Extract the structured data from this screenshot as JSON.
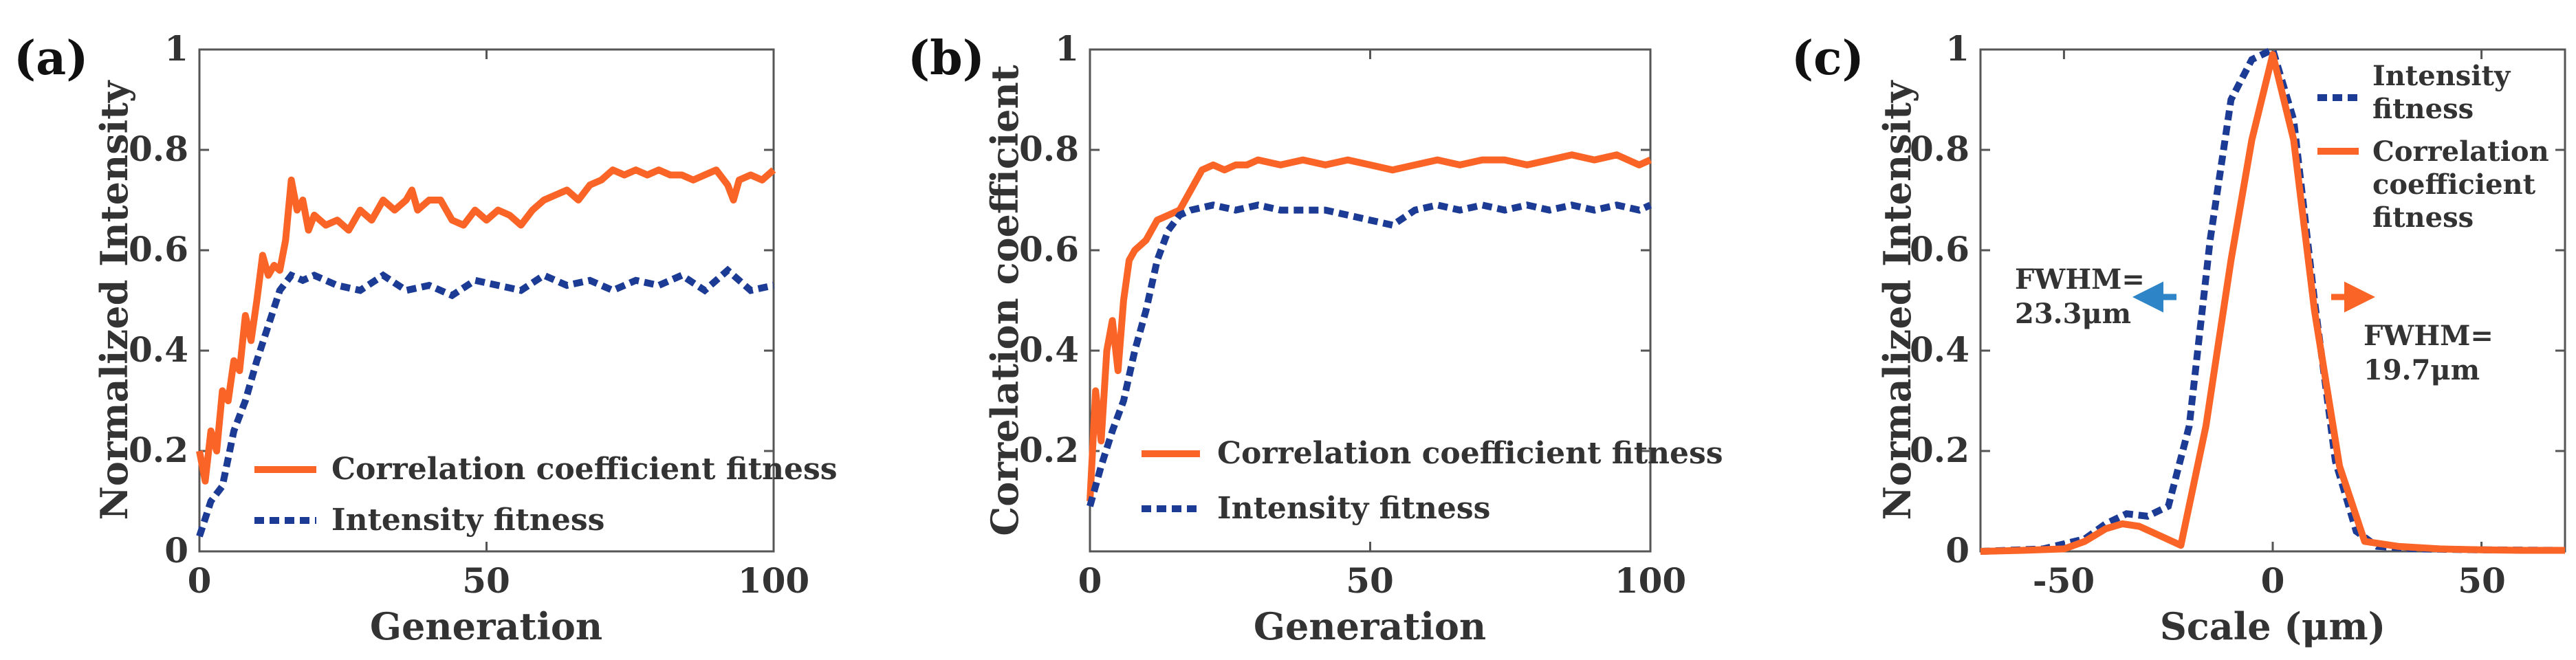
{
  "colors": {
    "orange": "#fa6426",
    "blue": "#1c3b94",
    "arrow_blue": "#2d85c8"
  },
  "chart_data": [
    {
      "type": "line",
      "panel_label": "(a)",
      "xlabel": "Generation",
      "ylabel": "Normalized Intensity",
      "xlim": [
        0,
        100
      ],
      "ylim": [
        0,
        1
      ],
      "xticks": [
        0,
        50,
        100
      ],
      "yticks": [
        0,
        0.2,
        0.4,
        0.6,
        0.8,
        1
      ],
      "ytick_labels": [
        "0",
        "0.2",
        "0.4",
        "0.6",
        "0.8",
        "1"
      ],
      "legend_position": "bottom-right",
      "series": [
        {
          "name": "Correlation coefficient fitness",
          "style": "solid",
          "x": [
            0,
            1,
            2,
            3,
            4,
            5,
            6,
            7,
            8,
            9,
            10,
            11,
            12,
            13,
            14,
            15,
            16,
            17,
            18,
            19,
            20,
            22,
            24,
            26,
            28,
            30,
            32,
            34,
            36,
            37,
            38,
            40,
            42,
            44,
            46,
            48,
            50,
            52,
            54,
            56,
            58,
            60,
            62,
            64,
            66,
            68,
            70,
            72,
            74,
            76,
            78,
            80,
            82,
            84,
            86,
            88,
            90,
            92,
            93,
            94,
            96,
            98,
            100
          ],
          "y": [
            0.2,
            0.14,
            0.24,
            0.2,
            0.32,
            0.3,
            0.38,
            0.36,
            0.47,
            0.42,
            0.5,
            0.59,
            0.55,
            0.57,
            0.56,
            0.62,
            0.74,
            0.68,
            0.7,
            0.64,
            0.67,
            0.65,
            0.66,
            0.64,
            0.68,
            0.66,
            0.7,
            0.68,
            0.7,
            0.72,
            0.68,
            0.7,
            0.7,
            0.66,
            0.65,
            0.68,
            0.66,
            0.68,
            0.67,
            0.65,
            0.68,
            0.7,
            0.71,
            0.72,
            0.7,
            0.73,
            0.74,
            0.76,
            0.75,
            0.76,
            0.75,
            0.76,
            0.75,
            0.75,
            0.74,
            0.75,
            0.76,
            0.73,
            0.7,
            0.74,
            0.75,
            0.74,
            0.76
          ]
        },
        {
          "name": "Intensity fitness",
          "style": "dashed",
          "x": [
            0,
            2,
            4,
            6,
            8,
            10,
            12,
            14,
            16,
            18,
            20,
            24,
            28,
            32,
            36,
            40,
            44,
            48,
            52,
            56,
            60,
            64,
            68,
            72,
            76,
            80,
            84,
            88,
            92,
            96,
            100
          ],
          "y": [
            0.03,
            0.1,
            0.13,
            0.24,
            0.3,
            0.38,
            0.45,
            0.52,
            0.55,
            0.54,
            0.55,
            0.53,
            0.52,
            0.55,
            0.52,
            0.53,
            0.51,
            0.54,
            0.53,
            0.52,
            0.55,
            0.53,
            0.54,
            0.52,
            0.54,
            0.53,
            0.55,
            0.52,
            0.56,
            0.52,
            0.53
          ]
        }
      ]
    },
    {
      "type": "line",
      "panel_label": "(b)",
      "xlabel": "Generation",
      "ylabel": "Correlation coefficient",
      "xlim": [
        0,
        100
      ],
      "ylim": [
        0,
        1
      ],
      "xticks": [
        0,
        50,
        100
      ],
      "yticks": [
        0,
        0.2,
        0.4,
        0.6,
        0.8,
        1
      ],
      "ytick_labels": [
        "",
        "0.2",
        "0.4",
        "0.6",
        "0.8",
        "1"
      ],
      "legend_position": "bottom-right",
      "series": [
        {
          "name": "Correlation coefficient fitness",
          "style": "solid",
          "x": [
            0,
            1,
            2,
            3,
            4,
            5,
            6,
            7,
            8,
            10,
            12,
            14,
            16,
            18,
            20,
            22,
            24,
            26,
            28,
            30,
            34,
            38,
            42,
            46,
            50,
            54,
            58,
            62,
            66,
            70,
            74,
            78,
            82,
            86,
            90,
            94,
            98,
            100
          ],
          "y": [
            0.1,
            0.32,
            0.22,
            0.4,
            0.46,
            0.36,
            0.5,
            0.58,
            0.6,
            0.62,
            0.66,
            0.67,
            0.68,
            0.72,
            0.76,
            0.77,
            0.76,
            0.77,
            0.77,
            0.78,
            0.77,
            0.78,
            0.77,
            0.78,
            0.77,
            0.76,
            0.77,
            0.78,
            0.77,
            0.78,
            0.78,
            0.77,
            0.78,
            0.79,
            0.78,
            0.79,
            0.77,
            0.78
          ]
        },
        {
          "name": "Intensity fitness",
          "style": "dashed",
          "x": [
            0,
            2,
            4,
            6,
            8,
            10,
            12,
            14,
            16,
            18,
            22,
            26,
            30,
            34,
            38,
            42,
            46,
            50,
            54,
            58,
            62,
            66,
            70,
            74,
            78,
            82,
            86,
            90,
            94,
            98,
            100
          ],
          "y": [
            0.09,
            0.17,
            0.24,
            0.3,
            0.4,
            0.48,
            0.58,
            0.64,
            0.67,
            0.68,
            0.69,
            0.68,
            0.69,
            0.68,
            0.68,
            0.68,
            0.67,
            0.66,
            0.65,
            0.68,
            0.69,
            0.68,
            0.69,
            0.68,
            0.69,
            0.68,
            0.69,
            0.68,
            0.69,
            0.68,
            0.69
          ]
        }
      ]
    },
    {
      "type": "line",
      "panel_label": "(c)",
      "xlabel": "Scale (μm)",
      "ylabel": "Normalized Intensity",
      "xlim": [
        -70,
        70
      ],
      "ylim": [
        0,
        1
      ],
      "xticks": [
        -50,
        0,
        50
      ],
      "yticks": [
        0,
        0.2,
        0.4,
        0.6,
        0.8,
        1
      ],
      "ytick_labels": [
        "0",
        "0.2",
        "0.4",
        "0.6",
        "0.8",
        "1"
      ],
      "legend_position": "top-right",
      "legend_lines": [
        {
          "series": "Intensity fitness",
          "lines": [
            "Intensity",
            "fitness"
          ]
        },
        {
          "series": "Correlation coefficient fitness",
          "lines": [
            "Correlation",
            "coefficient",
            "fitness"
          ]
        }
      ],
      "annotations": [
        {
          "text_lines": [
            "FWHM=",
            "23.3μm"
          ],
          "arrow": "left",
          "color": "#2d85c8"
        },
        {
          "text_lines": [
            "FWHM=",
            "19.7μm"
          ],
          "arrow": "right",
          "color": "#fa6426"
        }
      ],
      "series": [
        {
          "name": "Correlation coefficient fitness",
          "style": "solid",
          "x": [
            -70,
            -60,
            -50,
            -45,
            -40,
            -36,
            -32,
            -28,
            -22,
            -16,
            -10,
            -5,
            0,
            5,
            10,
            16,
            22,
            30,
            40,
            50,
            60,
            70
          ],
          "y": [
            0,
            0.002,
            0.005,
            0.02,
            0.045,
            0.055,
            0.05,
            0.035,
            0.012,
            0.25,
            0.58,
            0.82,
            0.99,
            0.82,
            0.48,
            0.17,
            0.02,
            0.01,
            0.005,
            0.003,
            0.002,
            0.002
          ]
        },
        {
          "name": "Intensity fitness",
          "style": "dashed",
          "x": [
            -70,
            -55,
            -45,
            -40,
            -35,
            -30,
            -25,
            -20,
            -15,
            -10,
            -5,
            0,
            5,
            10,
            15,
            20,
            25,
            35,
            50,
            70
          ],
          "y": [
            0,
            0.005,
            0.025,
            0.055,
            0.075,
            0.07,
            0.09,
            0.25,
            0.62,
            0.9,
            0.98,
            1,
            0.86,
            0.5,
            0.18,
            0.04,
            0.01,
            0.005,
            0.003,
            0.002
          ]
        }
      ]
    }
  ]
}
